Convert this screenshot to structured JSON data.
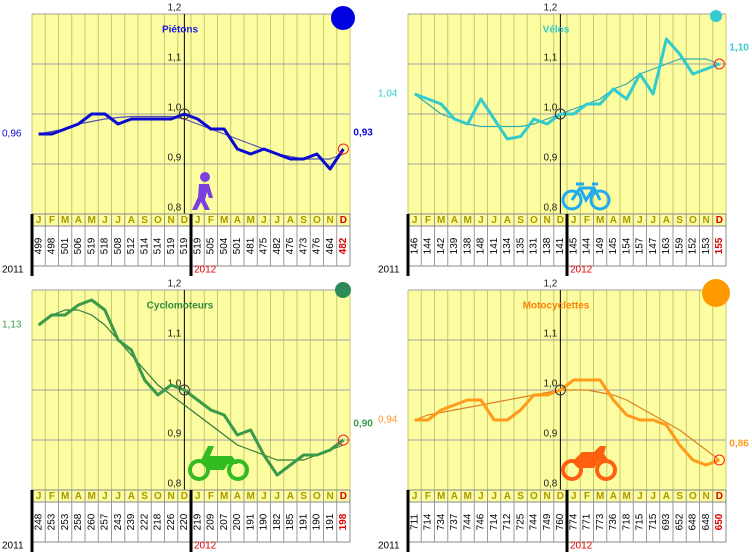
{
  "chart_data": [
    {
      "type": "line",
      "title": "Piétons",
      "title_color": "#1a1adf",
      "categories": [
        "J",
        "F",
        "M",
        "A",
        "M",
        "J",
        "J",
        "A",
        "S",
        "O",
        "N",
        "D",
        "J",
        "F",
        "M",
        "A",
        "M",
        "J",
        "J",
        "A",
        "S",
        "O",
        "N",
        "D"
      ],
      "year_labels": [
        "2011",
        "2012"
      ],
      "counts": [
        499,
        498,
        501,
        506,
        519,
        518,
        508,
        512,
        514,
        514,
        519,
        519,
        519,
        505,
        504,
        501,
        481,
        475,
        482,
        476,
        473,
        476,
        464,
        482
      ],
      "ylim": [
        0.8,
        1.2
      ],
      "yticks": [
        {
          "value": 0.8,
          "label": "0,8"
        },
        {
          "value": 0.9,
          "label": "0,9"
        },
        {
          "value": 1.0,
          "label": "1,0"
        },
        {
          "value": 1.1,
          "label": "1,1"
        },
        {
          "value": 1.2,
          "label": "1,2"
        }
      ],
      "series": [
        {
          "color": "#0a0ad0",
          "values": [
            0.96,
            0.96,
            0.97,
            0.98,
            1.0,
            1.0,
            0.98,
            0.99,
            0.99,
            0.99,
            0.99,
            1.0,
            0.99,
            0.97,
            0.97,
            0.93,
            0.92,
            0.93,
            0.92,
            0.91,
            0.91,
            0.92,
            0.89,
            0.93
          ],
          "value_labels": [
            "0,96",
            null,
            null,
            null,
            null,
            null,
            null,
            null,
            null,
            null,
            null,
            null,
            null,
            null,
            null,
            null,
            null,
            null,
            null,
            null,
            null,
            null,
            null,
            "0,93"
          ]
        },
        {
          "color": "#5555aa",
          "values": [
            0.96,
            0.965,
            0.97,
            0.98,
            0.985,
            0.99,
            0.993,
            0.995,
            0.995,
            0.995,
            0.995,
            0.99,
            0.98,
            0.97,
            0.96,
            0.95,
            0.94,
            0.93,
            0.92,
            0.915,
            0.91,
            0.91,
            0.91,
            0.92
          ]
        }
      ]
    },
    {
      "type": "line",
      "title": "Vélos",
      "title_color": "#33cccc",
      "categories": [
        "J",
        "F",
        "M",
        "A",
        "M",
        "J",
        "J",
        "A",
        "S",
        "O",
        "N",
        "D",
        "J",
        "F",
        "M",
        "A",
        "M",
        "J",
        "J",
        "A",
        "S",
        "O",
        "N",
        "D"
      ],
      "year_labels": [
        "2011",
        "2012"
      ],
      "counts": [
        146,
        144,
        142,
        139,
        138,
        148,
        141,
        134,
        135,
        131,
        138,
        141,
        145,
        144,
        149,
        145,
        154,
        157,
        147,
        163,
        159,
        152,
        153,
        155
      ],
      "ylim": [
        0.8,
        1.2
      ],
      "yticks": [
        {
          "value": 0.8,
          "label": "0,8"
        },
        {
          "value": 0.9,
          "label": "0,9"
        },
        {
          "value": 1.0,
          "label": "1,0"
        },
        {
          "value": 1.1,
          "label": "1,1"
        },
        {
          "value": 1.2,
          "label": "1,2"
        }
      ],
      "series": [
        {
          "color": "#33cccc",
          "values": [
            1.04,
            1.03,
            1.02,
            0.99,
            0.98,
            1.03,
            0.99,
            0.95,
            0.955,
            0.99,
            0.98,
            1.0,
            1.0,
            1.02,
            1.02,
            1.05,
            1.03,
            1.08,
            1.04,
            1.15,
            1.12,
            1.08,
            1.09,
            1.1
          ],
          "value_labels": [
            "1,04",
            null,
            null,
            null,
            null,
            null,
            null,
            null,
            null,
            null,
            null,
            null,
            null,
            null,
            null,
            null,
            null,
            null,
            null,
            null,
            null,
            null,
            null,
            "1,10"
          ]
        },
        {
          "color": "#33aaaa",
          "values": [
            1.04,
            1.02,
            1.0,
            0.99,
            0.98,
            0.975,
            0.975,
            0.975,
            0.975,
            0.98,
            0.99,
            1.0,
            1.01,
            1.02,
            1.03,
            1.05,
            1.06,
            1.08,
            1.09,
            1.1,
            1.11,
            1.11,
            1.11,
            1.1
          ]
        }
      ]
    },
    {
      "type": "line",
      "title": "Cyclomoteurs",
      "title_color": "#2e8b3e",
      "categories": [
        "J",
        "F",
        "M",
        "A",
        "M",
        "J",
        "J",
        "A",
        "S",
        "O",
        "N",
        "D",
        "J",
        "F",
        "M",
        "A",
        "M",
        "J",
        "J",
        "A",
        "S",
        "O",
        "N",
        "D"
      ],
      "year_labels": [
        "2011",
        "2012"
      ],
      "counts": [
        248,
        253,
        253,
        258,
        260,
        257,
        243,
        239,
        222,
        218,
        226,
        220,
        219,
        209,
        207,
        200,
        191,
        190,
        182,
        185,
        191,
        190,
        191,
        198
      ],
      "ylim": [
        0.8,
        1.2
      ],
      "yticks": [
        {
          "value": 0.8,
          "label": "0,8"
        },
        {
          "value": 0.9,
          "label": "0,9"
        },
        {
          "value": 1.0,
          "label": "1,0"
        },
        {
          "value": 1.1,
          "label": "1,1"
        },
        {
          "value": 1.2,
          "label": "1,2"
        }
      ],
      "series": [
        {
          "color": "#3a9a4a",
          "values": [
            1.13,
            1.15,
            1.15,
            1.17,
            1.18,
            1.16,
            1.1,
            1.08,
            1.02,
            0.99,
            1.01,
            1.0,
            0.98,
            0.96,
            0.95,
            0.91,
            0.92,
            0.87,
            0.83,
            0.85,
            0.87,
            0.87,
            0.88,
            0.9
          ],
          "value_labels": [
            "1,13",
            null,
            null,
            null,
            null,
            null,
            null,
            null,
            null,
            null,
            null,
            null,
            null,
            null,
            null,
            null,
            null,
            null,
            null,
            null,
            null,
            null,
            null,
            "0,90"
          ]
        },
        {
          "color": "#2e7a3a",
          "values": [
            1.13,
            1.15,
            1.16,
            1.16,
            1.15,
            1.13,
            1.1,
            1.07,
            1.04,
            1.01,
            0.99,
            0.97,
            0.95,
            0.93,
            0.91,
            0.89,
            0.88,
            0.87,
            0.86,
            0.86,
            0.86,
            0.87,
            0.88,
            0.89
          ]
        }
      ]
    },
    {
      "type": "line",
      "title": "Motocyclettes",
      "title_color": "#ff8000",
      "categories": [
        "J",
        "F",
        "M",
        "A",
        "M",
        "J",
        "J",
        "A",
        "S",
        "O",
        "N",
        "D",
        "J",
        "F",
        "M",
        "A",
        "M",
        "J",
        "J",
        "A",
        "S",
        "O",
        "N",
        "D"
      ],
      "year_labels": [
        "2011",
        "2012"
      ],
      "counts": [
        711,
        714,
        734,
        737,
        744,
        746,
        714,
        712,
        725,
        744,
        749,
        760,
        774,
        771,
        773,
        736,
        718,
        715,
        715,
        693,
        652,
        648,
        648,
        650
      ],
      "ylim": [
        0.8,
        1.2
      ],
      "yticks": [
        {
          "value": 0.8,
          "label": "0,8"
        },
        {
          "value": 0.9,
          "label": "0,9"
        },
        {
          "value": 1.0,
          "label": "1,0"
        },
        {
          "value": 1.1,
          "label": "1,1"
        },
        {
          "value": 1.2,
          "label": "1,2"
        }
      ],
      "series": [
        {
          "color": "#ff9a1a",
          "values": [
            0.94,
            0.94,
            0.96,
            0.97,
            0.98,
            0.98,
            0.94,
            0.94,
            0.96,
            0.99,
            0.99,
            1.0,
            1.02,
            1.02,
            1.02,
            0.98,
            0.95,
            0.94,
            0.94,
            0.93,
            0.89,
            0.86,
            0.85,
            0.86
          ],
          "value_labels": [
            "0,94",
            null,
            null,
            null,
            null,
            null,
            null,
            null,
            null,
            null,
            null,
            null,
            null,
            null,
            null,
            null,
            null,
            null,
            null,
            null,
            null,
            null,
            null,
            "0,86"
          ]
        },
        {
          "color": "#e08020",
          "values": [
            0.94,
            0.95,
            0.955,
            0.96,
            0.965,
            0.97,
            0.975,
            0.98,
            0.985,
            0.99,
            0.995,
            1.0,
            1.0,
            1.0,
            0.995,
            0.99,
            0.98,
            0.965,
            0.95,
            0.935,
            0.92,
            0.9,
            0.88,
            0.86
          ]
        }
      ]
    }
  ]
}
